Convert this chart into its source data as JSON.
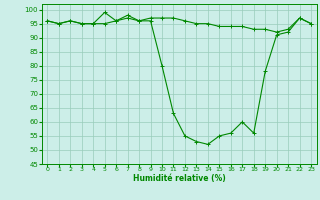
{
  "title": "",
  "xlabel": "Humidité relative (%)",
  "ylabel": "",
  "background_color": "#cceee8",
  "grid_color": "#99ccbb",
  "line_color": "#008800",
  "ylim": [
    45,
    102
  ],
  "xlim": [
    -0.5,
    23.5
  ],
  "yticks": [
    45,
    50,
    55,
    60,
    65,
    70,
    75,
    80,
    85,
    90,
    95,
    100
  ],
  "xticks": [
    0,
    1,
    2,
    3,
    4,
    5,
    6,
    7,
    8,
    9,
    10,
    11,
    12,
    13,
    14,
    15,
    16,
    17,
    18,
    19,
    20,
    21,
    22,
    23
  ],
  "series1": [
    96,
    95,
    96,
    95,
    95,
    95,
    96,
    97,
    96,
    97,
    97,
    97,
    96,
    95,
    95,
    94,
    94,
    94,
    93,
    93,
    92,
    93,
    97,
    95
  ],
  "series2": [
    96,
    95,
    96,
    95,
    95,
    99,
    96,
    98,
    96,
    96,
    80,
    63,
    55,
    53,
    52,
    55,
    56,
    60,
    56,
    78,
    91,
    92,
    97,
    95
  ]
}
